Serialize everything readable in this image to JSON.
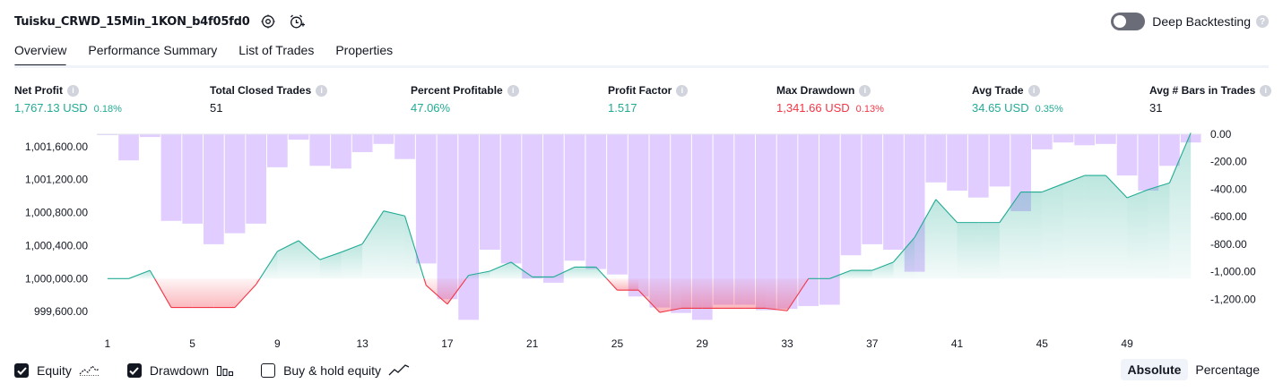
{
  "header": {
    "strategy_title": "Tuisku_CRWD_15Min_1KON_b4f05fd0",
    "settings_icon": "gear-icon",
    "alert_icon": "alarm-clock-plus-icon",
    "deep_backtesting_label": "Deep Backtesting",
    "deep_backtesting_enabled": false
  },
  "tabs": [
    {
      "label": "Overview",
      "active": true
    },
    {
      "label": "Performance Summary",
      "active": false
    },
    {
      "label": "List of Trades",
      "active": false
    },
    {
      "label": "Properties",
      "active": false
    }
  ],
  "metrics": {
    "net_profit": {
      "label": "Net Profit",
      "value": "1,767.13 USD",
      "pct": "0.18%"
    },
    "total_closed_trades": {
      "label": "Total Closed Trades",
      "value": "51"
    },
    "percent_profitable": {
      "label": "Percent Profitable",
      "value": "47.06%"
    },
    "profit_factor": {
      "label": "Profit Factor",
      "value": "1.517"
    },
    "max_drawdown": {
      "label": "Max Drawdown",
      "value": "1,341.66 USD",
      "pct": "0.13%"
    },
    "avg_trade": {
      "label": "Avg Trade",
      "value": "34.65 USD",
      "pct": "0.35%"
    },
    "avg_bars": {
      "label": "Avg # Bars in Trades",
      "value": "31"
    }
  },
  "chart_data": {
    "type": "area",
    "x": [
      1,
      2,
      3,
      4,
      5,
      6,
      7,
      8,
      9,
      10,
      11,
      12,
      13,
      14,
      15,
      16,
      17,
      18,
      19,
      20,
      21,
      22,
      23,
      24,
      25,
      26,
      27,
      28,
      29,
      30,
      31,
      32,
      33,
      34,
      35,
      36,
      37,
      38,
      39,
      40,
      41,
      42,
      43,
      44,
      45,
      46,
      47,
      48,
      49,
      50,
      51,
      52
    ],
    "x_ticks": [
      "1",
      "5",
      "9",
      "13",
      "17",
      "21",
      "25",
      "29",
      "33",
      "37",
      "41",
      "45",
      "49"
    ],
    "equity": [
      1000000,
      1000000,
      1000100,
      999650,
      999650,
      999650,
      999650,
      999930,
      1000330,
      1000460,
      1000230,
      1000320,
      1000420,
      1000820,
      1000760,
      999920,
      999690,
      1000040,
      1000090,
      1000200,
      1000020,
      1000020,
      1000140,
      1000140,
      999860,
      999860,
      999590,
      999640,
      999640,
      999640,
      999640,
      999640,
      999610,
      1000000,
      1000000,
      1000100,
      1000100,
      1000200,
      1000500,
      1000960,
      1000680,
      1000680,
      1000680,
      1001050,
      1001050,
      1001150,
      1001250,
      1001250,
      1000980,
      1001080,
      1001160,
      1001767
    ],
    "drawdown": [
      0,
      -190,
      -20,
      -630,
      -650,
      -800,
      -720,
      -650,
      -240,
      -40,
      -230,
      -250,
      -130,
      -70,
      -180,
      -940,
      -1200,
      -1350,
      -840,
      -940,
      -1050,
      -1080,
      -920,
      -980,
      -1020,
      -1180,
      -1260,
      -1300,
      -1350,
      -1240,
      -1240,
      -1280,
      -1270,
      -1250,
      -1240,
      -880,
      -800,
      -840,
      -1000,
      -350,
      -410,
      -460,
      -380,
      -560,
      -110,
      -60,
      -80,
      -70,
      -300,
      -410,
      -230,
      -60
    ],
    "equity_ticks": [
      "1,001,600.00",
      "1,001,200.00",
      "1,000,800.00",
      "1,000,400.00",
      "1,000,000.00",
      "999,600.00"
    ],
    "equity_tick_values": [
      1001600,
      1001200,
      1000800,
      1000400,
      1000000,
      999600
    ],
    "drawdown_ticks": [
      "0.00",
      "-200.00",
      "-400.00",
      "-600.00",
      "-800.00",
      "-1,000.00",
      "-1,200.00"
    ],
    "drawdown_tick_values": [
      0,
      -200,
      -400,
      -600,
      -800,
      -1000,
      -1200
    ],
    "equity_range": [
      999450,
      1001750
    ],
    "drawdown_range": [
      -1380,
      0
    ],
    "baseline": 1000000,
    "colors": {
      "equity_up": "#22ab94",
      "equity_down": "#f23645",
      "drawdown_bar": "#dcc4ff"
    }
  },
  "legend": {
    "equity": {
      "label": "Equity",
      "checked": true,
      "icon": "equity-line-icon"
    },
    "drawdown": {
      "label": "Drawdown",
      "checked": true,
      "icon": "bar-chart-icon"
    },
    "buyhold": {
      "label": "Buy & hold equity",
      "checked": false,
      "icon": "trend-line-icon"
    }
  },
  "modes": {
    "absolute": "Absolute",
    "percentage": "Percentage",
    "active": "absolute"
  }
}
